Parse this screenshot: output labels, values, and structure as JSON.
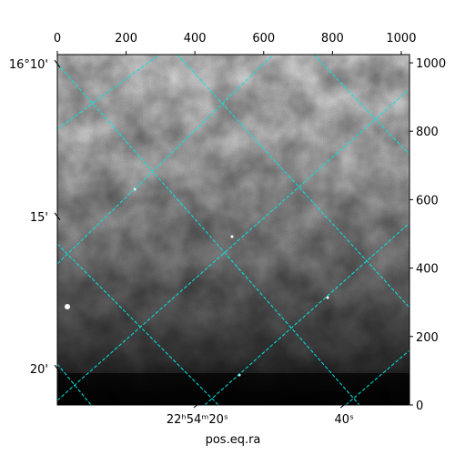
{
  "chart_data": {
    "type": "image",
    "xlabel": "pos.eq.ra",
    "xlim": [
      0,
      1024
    ],
    "xticks": [
      0,
      200,
      400,
      600,
      800,
      1000
    ],
    "ylim": [
      0,
      1024
    ],
    "yticks": [
      0,
      200,
      400,
      600,
      800,
      1000
    ],
    "ra_ticks": [
      {
        "value": 407,
        "label": "22ʰ54ᵐ20ˢ"
      },
      {
        "value": 834,
        "label": "40ˢ"
      }
    ],
    "dec_ticks": [
      {
        "value": 997,
        "label": "16°10'"
      },
      {
        "value": 551,
        "label": "15'"
      },
      {
        "value": 106,
        "label": "20'"
      }
    ],
    "grid_color": "#00e5e5"
  }
}
